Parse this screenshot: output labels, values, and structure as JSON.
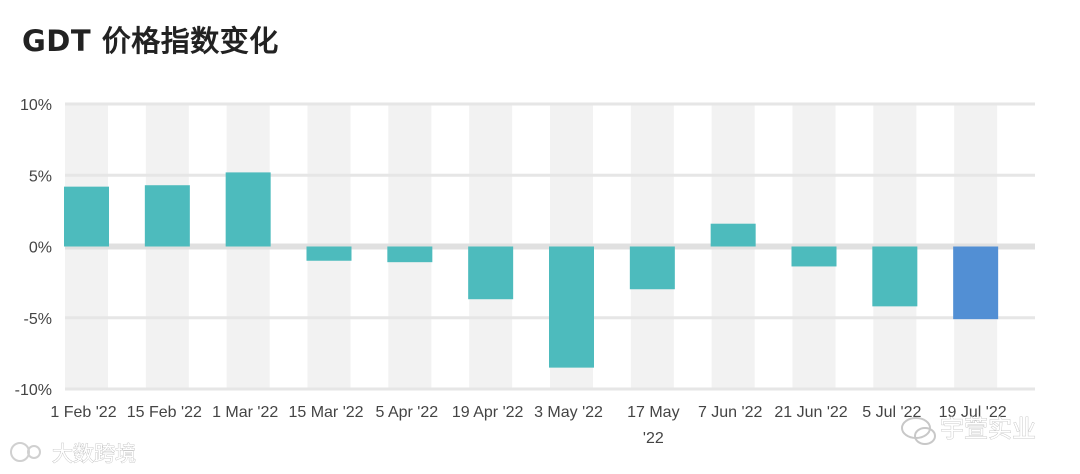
{
  "title": "GDT 价格指数变化",
  "chart_data": {
    "type": "bar",
    "title": "GDT 价格指数变化",
    "xlabel": "",
    "ylabel": "",
    "categories": [
      "1 Feb '22",
      "15 Feb '22",
      "1 Mar '22",
      "15 Mar '22",
      "5 Apr '22",
      "19 Apr '22",
      "3 May '22",
      "17 May '22",
      "7 Jun '22",
      "21 Jun '22",
      "5 Jul '22",
      "19 Jul '22"
    ],
    "values": [
      4.2,
      4.3,
      5.2,
      -1.0,
      -1.1,
      -3.7,
      -8.5,
      -3.0,
      1.6,
      -1.4,
      -4.2,
      -5.1
    ],
    "ylim": [
      -10,
      10
    ],
    "yticks": [
      10,
      5,
      0,
      -5,
      -10
    ],
    "ytick_labels": [
      "10%",
      "5%",
      "0%",
      "-5%",
      "-10%"
    ],
    "grid": true,
    "bar_color": "#4dbbbd",
    "highlight_color": "#528fd4",
    "highlight_index": 11
  },
  "watermarks": {
    "left": "大数跨境",
    "right": "宇萱实业"
  }
}
